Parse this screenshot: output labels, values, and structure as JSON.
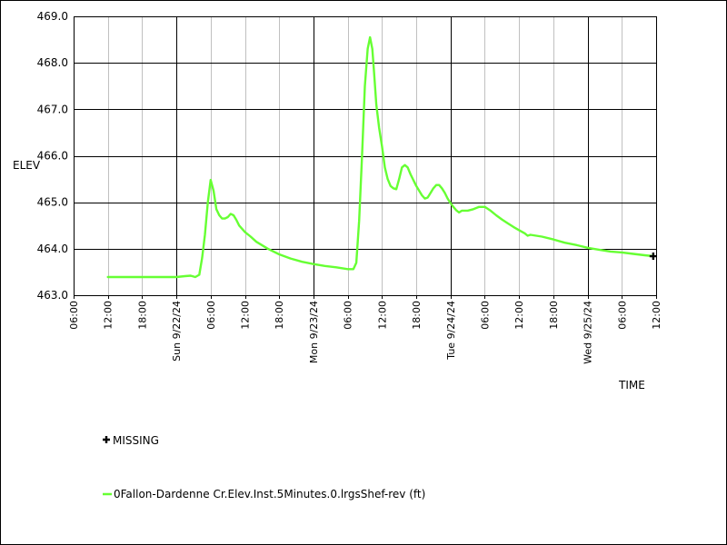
{
  "chart_data": {
    "type": "line",
    "ylabel": "ELEV",
    "xlabel": "TIME",
    "ylim": [
      463.0,
      469.0
    ],
    "y_ticks": [
      "463.0",
      "464.0",
      "465.0",
      "466.0",
      "467.0",
      "468.0",
      "469.0"
    ],
    "x_range_hours": [
      0,
      102
    ],
    "x_ticks": [
      {
        "t": 0,
        "label": "06:00",
        "major": false
      },
      {
        "t": 6,
        "label": "12:00",
        "major": false
      },
      {
        "t": 12,
        "label": "18:00",
        "major": false
      },
      {
        "t": 18,
        "label": "Sun 9/22/24",
        "major": true
      },
      {
        "t": 24,
        "label": "06:00",
        "major": false
      },
      {
        "t": 30,
        "label": "12:00",
        "major": false
      },
      {
        "t": 36,
        "label": "18:00",
        "major": false
      },
      {
        "t": 42,
        "label": "Mon 9/23/24",
        "major": true
      },
      {
        "t": 48,
        "label": "06:00",
        "major": false
      },
      {
        "t": 54,
        "label": "12:00",
        "major": false
      },
      {
        "t": 60,
        "label": "18:00",
        "major": false
      },
      {
        "t": 66,
        "label": "Tue 9/24/24",
        "major": true
      },
      {
        "t": 72,
        "label": "06:00",
        "major": false
      },
      {
        "t": 78,
        "label": "12:00",
        "major": false
      },
      {
        "t": 84,
        "label": "18:00",
        "major": false
      },
      {
        "t": 90,
        "label": "Wed 9/25/24",
        "major": true
      },
      {
        "t": 96,
        "label": "06:00",
        "major": false
      },
      {
        "t": 102,
        "label": "12:00",
        "major": false
      }
    ],
    "grid": true,
    "series": [
      {
        "name": "0Fallon-Dardenne Cr.Elev.Inst.5Minutes.0.lrgsShef-rev (ft)",
        "color": "#66ff33",
        "points": [
          [
            6,
            463.39
          ],
          [
            9,
            463.39
          ],
          [
            12,
            463.39
          ],
          [
            15,
            463.39
          ],
          [
            18,
            463.39
          ],
          [
            19.5,
            463.41
          ],
          [
            20.5,
            463.42
          ],
          [
            21.3,
            463.39
          ],
          [
            22,
            463.44
          ],
          [
            22.5,
            463.8
          ],
          [
            23,
            464.3
          ],
          [
            23.5,
            465.0
          ],
          [
            24,
            465.48
          ],
          [
            24.5,
            465.25
          ],
          [
            25,
            464.85
          ],
          [
            25.5,
            464.72
          ],
          [
            26,
            464.65
          ],
          [
            26.5,
            464.65
          ],
          [
            27,
            464.68
          ],
          [
            27.5,
            464.75
          ],
          [
            28,
            464.72
          ],
          [
            28.5,
            464.62
          ],
          [
            29,
            464.5
          ],
          [
            30,
            464.36
          ],
          [
            31,
            464.26
          ],
          [
            32,
            464.15
          ],
          [
            34,
            464.0
          ],
          [
            36,
            463.88
          ],
          [
            38,
            463.79
          ],
          [
            40,
            463.72
          ],
          [
            42,
            463.67
          ],
          [
            44,
            463.63
          ],
          [
            46,
            463.6
          ],
          [
            47,
            463.58
          ],
          [
            48,
            463.56
          ],
          [
            49,
            463.56
          ],
          [
            49.5,
            463.7
          ],
          [
            50,
            464.6
          ],
          [
            50.5,
            466.0
          ],
          [
            51,
            467.5
          ],
          [
            51.5,
            468.3
          ],
          [
            51.9,
            468.55
          ],
          [
            52.3,
            468.3
          ],
          [
            52.6,
            467.8
          ],
          [
            53,
            467.1
          ],
          [
            53.5,
            466.6
          ],
          [
            54,
            466.2
          ],
          [
            54.5,
            465.75
          ],
          [
            55,
            465.5
          ],
          [
            55.5,
            465.35
          ],
          [
            56,
            465.3
          ],
          [
            56.5,
            465.28
          ],
          [
            57,
            465.5
          ],
          [
            57.5,
            465.75
          ],
          [
            58,
            465.8
          ],
          [
            58.5,
            465.75
          ],
          [
            59,
            465.6
          ],
          [
            60,
            465.35
          ],
          [
            61,
            465.15
          ],
          [
            61.5,
            465.08
          ],
          [
            62,
            465.1
          ],
          [
            62.5,
            465.2
          ],
          [
            63,
            465.3
          ],
          [
            63.5,
            465.37
          ],
          [
            64,
            465.37
          ],
          [
            64.5,
            465.3
          ],
          [
            65,
            465.2
          ],
          [
            65.5,
            465.08
          ],
          [
            66,
            464.98
          ],
          [
            66.5,
            464.9
          ],
          [
            67,
            464.83
          ],
          [
            67.5,
            464.78
          ],
          [
            68,
            464.82
          ],
          [
            69,
            464.82
          ],
          [
            70,
            464.85
          ],
          [
            71,
            464.9
          ],
          [
            72,
            464.9
          ],
          [
            73,
            464.82
          ],
          [
            74,
            464.72
          ],
          [
            75,
            464.63
          ],
          [
            76,
            464.55
          ],
          [
            77,
            464.47
          ],
          [
            78,
            464.4
          ],
          [
            79,
            464.33
          ],
          [
            79.5,
            464.28
          ],
          [
            80,
            464.3
          ],
          [
            81,
            464.28
          ],
          [
            82,
            464.26
          ],
          [
            84,
            464.2
          ],
          [
            86,
            464.13
          ],
          [
            88,
            464.08
          ],
          [
            90,
            464.02
          ],
          [
            92,
            463.98
          ],
          [
            94,
            463.94
          ],
          [
            96,
            463.92
          ],
          [
            98,
            463.89
          ],
          [
            100,
            463.86
          ],
          [
            101.5,
            463.84
          ]
        ]
      }
    ],
    "missing_marker": {
      "t": 101.5,
      "value": 463.84,
      "label": "MISSING",
      "color": "#000000"
    }
  }
}
